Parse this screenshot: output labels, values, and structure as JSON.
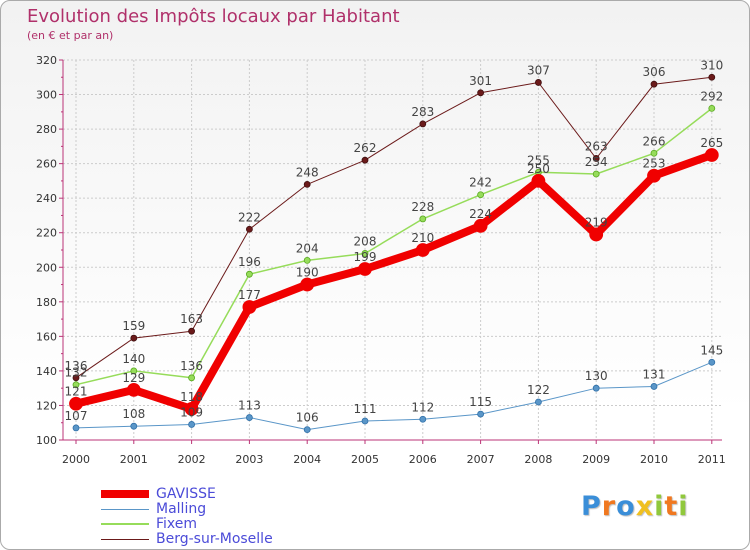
{
  "chart_data": {
    "type": "line",
    "title": "Evolution des Impôts locaux par Habitant",
    "subtitle": "(en € et par an)",
    "xlabel": "",
    "ylabel": "",
    "categories": [
      "2000",
      "2001",
      "2002",
      "2003",
      "2004",
      "2005",
      "2006",
      "2007",
      "2008",
      "2009",
      "2010",
      "2011"
    ],
    "ylim": [
      100,
      320
    ],
    "yticks": [
      100,
      120,
      140,
      160,
      180,
      200,
      220,
      240,
      260,
      280,
      300,
      320
    ],
    "grid": true,
    "legend_position": "bottom-left",
    "series": [
      {
        "name": "Berg-sur-Moselle",
        "color": "#6b1a1a",
        "values": [
          136,
          159,
          163,
          222,
          248,
          262,
          283,
          301,
          307,
          263,
          306,
          310
        ]
      },
      {
        "name": "Fixem",
        "color": "#96dc5a",
        "values": [
          132,
          140,
          136,
          196,
          204,
          208,
          228,
          242,
          255,
          254,
          266,
          292
        ]
      },
      {
        "name": "Malling",
        "color": "#5a96c8",
        "values": [
          107,
          108,
          109,
          113,
          106,
          111,
          112,
          115,
          122,
          130,
          131,
          145
        ]
      },
      {
        "name": "GAVISSE",
        "color": "#f00000",
        "values": [
          121,
          129,
          118,
          177,
          190,
          199,
          210,
          224,
          250,
          219,
          253,
          265
        ]
      }
    ],
    "legend": [
      {
        "name": "GAVISSE",
        "color": "#f00000"
      },
      {
        "name": "Malling",
        "color": "#5a96c8"
      },
      {
        "name": "Fixem",
        "color": "#96dc5a"
      },
      {
        "name": "Berg-sur-Moselle",
        "color": "#6b1a1a"
      }
    ]
  },
  "logo": {
    "letters": [
      "P",
      "r",
      "o",
      "x",
      "i",
      "t",
      "i"
    ],
    "colors": [
      "#3a8ed8",
      "#f07820",
      "#3a8ed8",
      "#f0c020",
      "#90c83c",
      "#f07820",
      "#90c83c"
    ]
  }
}
